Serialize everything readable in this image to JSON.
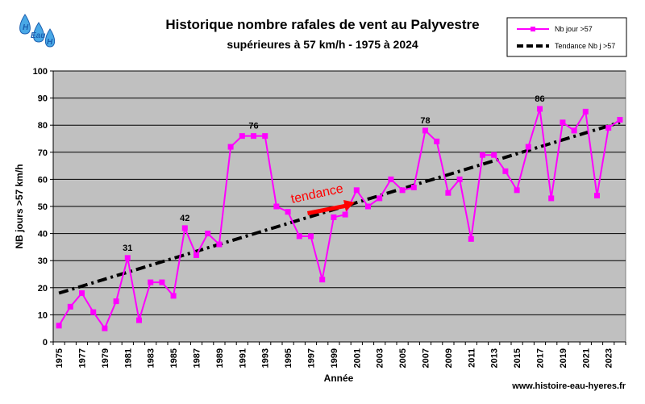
{
  "chart_data": {
    "type": "line",
    "title": "Historique nombre rafales de vent  au Palyvestre",
    "subtitle": "supérieures à 57 km/h - 1975 à 2024",
    "xlabel": "Année",
    "ylabel": "NB jours >57 km/h",
    "ylim": [
      0,
      100
    ],
    "ytick_step": 10,
    "grid": true,
    "legend_position": "top-right",
    "x": [
      1975,
      1976,
      1977,
      1978,
      1979,
      1980,
      1981,
      1982,
      1983,
      1984,
      1985,
      1986,
      1987,
      1988,
      1989,
      1990,
      1991,
      1992,
      1993,
      1994,
      1995,
      1996,
      1997,
      1998,
      1999,
      2000,
      2001,
      2002,
      2003,
      2004,
      2005,
      2006,
      2007,
      2008,
      2009,
      2010,
      2011,
      2012,
      2013,
      2014,
      2015,
      2016,
      2017,
      2018,
      2019,
      2020,
      2021,
      2022,
      2023,
      2024
    ],
    "x_tick_labels": [
      1975,
      1977,
      1979,
      1981,
      1983,
      1985,
      1987,
      1989,
      1991,
      1993,
      1995,
      1997,
      1999,
      2001,
      2003,
      2005,
      2007,
      2009,
      2011,
      2013,
      2015,
      2017,
      2019,
      2021,
      2023
    ],
    "series": [
      {
        "name": "Nb jour >57",
        "color": "#ff00ff",
        "values": [
          6,
          13,
          18,
          11,
          5,
          15,
          31,
          8,
          22,
          22,
          17,
          42,
          32,
          40,
          36,
          72,
          76,
          76,
          76,
          50,
          48,
          39,
          39,
          23,
          46,
          47,
          56,
          50,
          53,
          60,
          56,
          57,
          78,
          74,
          55,
          60,
          38,
          69,
          69,
          63,
          56,
          72,
          86,
          53,
          81,
          78,
          85,
          54,
          79,
          82
        ]
      },
      {
        "name": "Tendance Nb j >57",
        "color": "#000000",
        "style": "dashdot",
        "values_start": 18,
        "values_end": 81
      }
    ],
    "point_labels": [
      {
        "x": 1981,
        "y": 31,
        "text": "31"
      },
      {
        "x": 1986,
        "y": 42,
        "text": "42"
      },
      {
        "x": 1992,
        "y": 76,
        "text": "76"
      },
      {
        "x": 2007,
        "y": 78,
        "text": "78"
      },
      {
        "x": 2017,
        "y": 86,
        "text": "86"
      }
    ],
    "annotation": {
      "text": "tendance",
      "color": "#ff0000"
    }
  },
  "logo": {
    "letters": [
      "H",
      "Eau",
      "H"
    ]
  },
  "footer": {
    "website": "www.histoire-eau-hyeres.fr"
  },
  "colors": {
    "plot_background": "#c0c0c0",
    "marker": "#ff00ff"
  }
}
